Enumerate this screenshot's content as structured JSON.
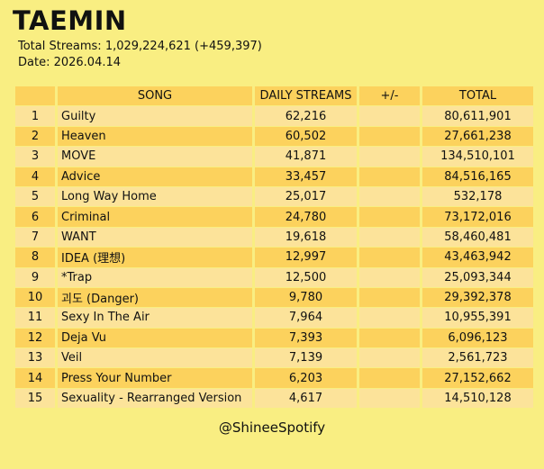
{
  "header": {
    "artist": "TAEMIN",
    "total_streams_line": "Total Streams: 1,029,224,621 (+459,397)",
    "date_line": "Date: 2026.04.14"
  },
  "chart_data": {
    "type": "table",
    "columns": [
      "",
      "SONG",
      "DAILY STREAMS",
      "+/-",
      "TOTAL"
    ],
    "rows": [
      {
        "rank": "1",
        "song": "Guilty",
        "daily": "62,216",
        "change": "",
        "total": "80,611,901"
      },
      {
        "rank": "2",
        "song": "Heaven",
        "daily": "60,502",
        "change": "",
        "total": "27,661,238"
      },
      {
        "rank": "3",
        "song": "MOVE",
        "daily": "41,871",
        "change": "",
        "total": "134,510,101"
      },
      {
        "rank": "4",
        "song": "Advice",
        "daily": "33,457",
        "change": "",
        "total": "84,516,165"
      },
      {
        "rank": "5",
        "song": "Long Way Home",
        "daily": "25,017",
        "change": "",
        "total": "532,178"
      },
      {
        "rank": "6",
        "song": "Criminal",
        "daily": "24,780",
        "change": "",
        "total": "73,172,016"
      },
      {
        "rank": "7",
        "song": "WANT",
        "daily": "19,618",
        "change": "",
        "total": "58,460,481"
      },
      {
        "rank": "8",
        "song": "IDEA (理想)",
        "daily": "12,997",
        "change": "",
        "total": "43,463,942"
      },
      {
        "rank": "9",
        "song": "*Trap",
        "daily": "12,500",
        "change": "",
        "total": "25,093,344"
      },
      {
        "rank": "10",
        "song": "괴도 (Danger)",
        "daily": "9,780",
        "change": "",
        "total": "29,392,378"
      },
      {
        "rank": "11",
        "song": "Sexy In The Air",
        "daily": "7,964",
        "change": "",
        "total": "10,955,391"
      },
      {
        "rank": "12",
        "song": "Deja Vu",
        "daily": "7,393",
        "change": "",
        "total": "6,096,123"
      },
      {
        "rank": "13",
        "song": "Veil",
        "daily": "7,139",
        "change": "",
        "total": "2,561,723"
      },
      {
        "rank": "14",
        "song": "Press Your Number",
        "daily": "6,203",
        "change": "",
        "total": "27,152,662"
      },
      {
        "rank": "15",
        "song": "Sexuality - Rearranged Version",
        "daily": "4,617",
        "change": "",
        "total": "14,510,128"
      }
    ]
  },
  "footer": {
    "credit": "@ShineeSpotify"
  },
  "colors": {
    "background": "#f9ee82",
    "row_light": "#fce39a",
    "row_dark": "#fcd25d"
  }
}
